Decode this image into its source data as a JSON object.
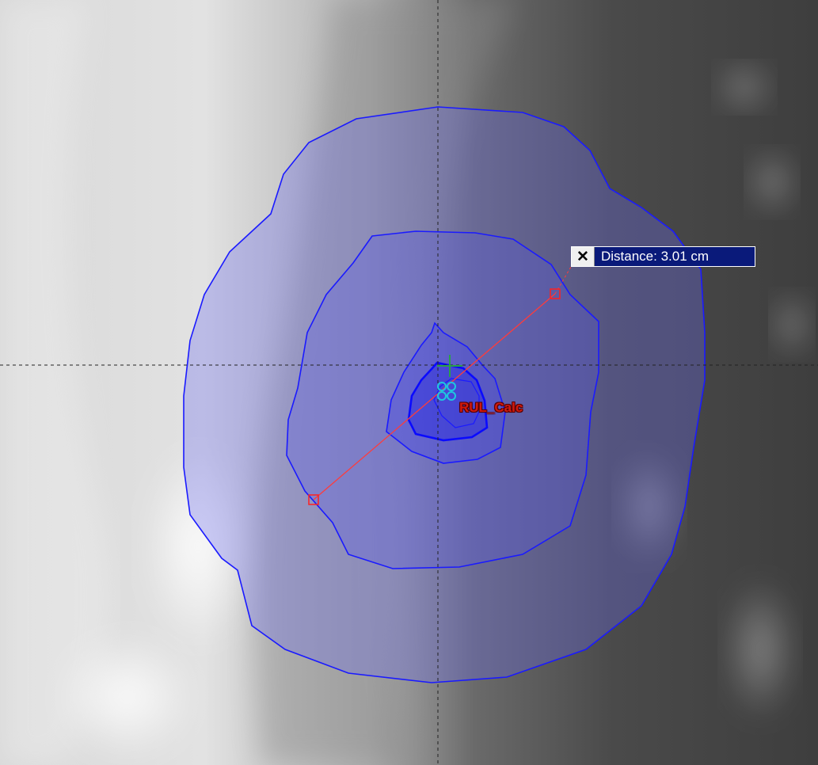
{
  "measurement": {
    "close_icon": "close-icon",
    "close_glyph": "✕",
    "label": "Distance: 3.01 cm"
  },
  "structure": {
    "name": "RUL_Calc",
    "color": "#d11a0e"
  },
  "colors": {
    "contour": "#1a1aff",
    "contour_fill": "#7070ff",
    "crosshair": "#222222",
    "ruler": "#ff3b3b",
    "isocenter_green": "#2aa04a",
    "isocenter_cyan": "#1ec8e0",
    "label_bg": "#0a1a7a"
  }
}
